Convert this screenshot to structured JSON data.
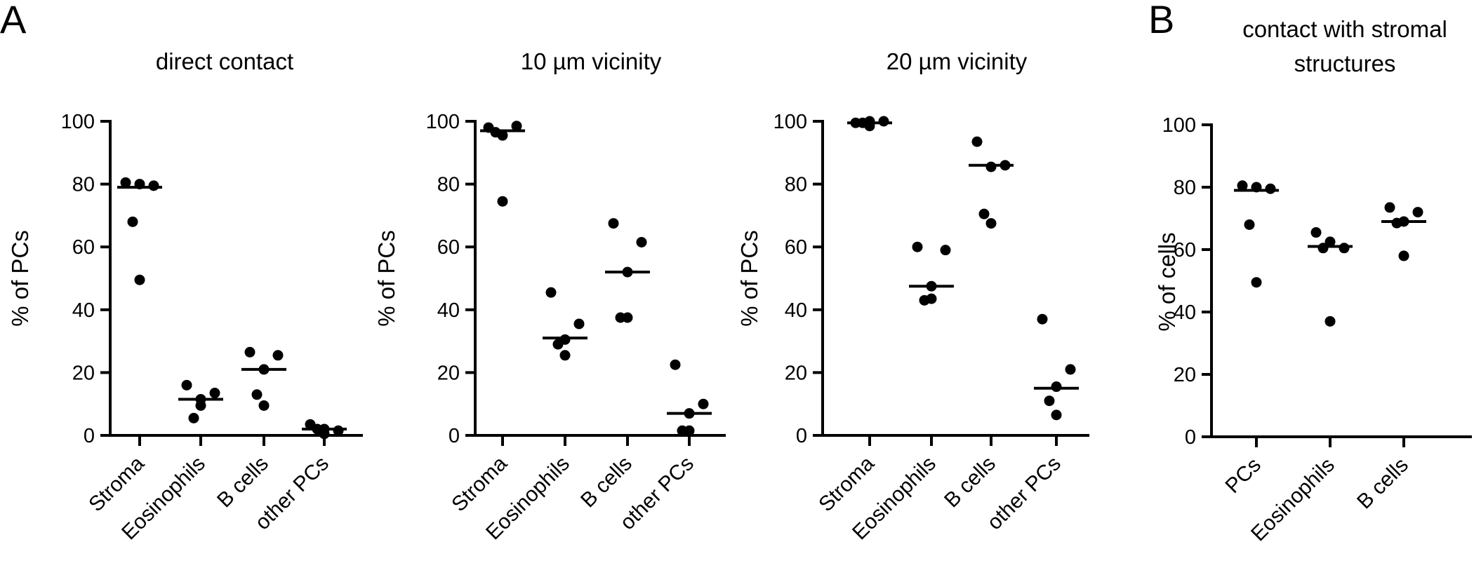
{
  "figure": {
    "panel_letters": [
      "A",
      "B"
    ]
  },
  "chart_data": [
    {
      "type": "scatter",
      "panel": "A",
      "title_lines": [
        "direct contact"
      ],
      "ylabel": "% of PCs",
      "ylim": [
        0,
        100
      ],
      "yticks": [
        0,
        20,
        40,
        60,
        80,
        100
      ],
      "categories": [
        "Stroma",
        "Eosinophils",
        "B cells",
        "other PCs"
      ],
      "points": [
        [
          80.5,
          79.5,
          80,
          68,
          49.5
        ],
        [
          16,
          13.5,
          11.5,
          5.5,
          9.5
        ],
        [
          26.5,
          25.5,
          21,
          13,
          9.5
        ],
        [
          3.5,
          1.5,
          2,
          2,
          0.5
        ]
      ],
      "medians": [
        79,
        11.5,
        21,
        2
      ]
    },
    {
      "type": "scatter",
      "panel": "A",
      "title_lines": [
        "10 µm vicinity"
      ],
      "ylabel": "% of PCs",
      "ylim": [
        0,
        100
      ],
      "yticks": [
        0,
        20,
        40,
        60,
        80,
        100
      ],
      "categories": [
        "Stroma",
        "Eosinophils",
        "B cells",
        "other PCs"
      ],
      "points": [
        [
          98,
          98.5,
          95.5,
          96.5,
          74.5
        ],
        [
          45.5,
          35.5,
          30.5,
          29,
          25.5
        ],
        [
          67.5,
          61.5,
          52,
          37.5,
          37.5
        ],
        [
          22.5,
          10,
          7,
          1.5,
          1.5
        ]
      ],
      "medians": [
        97,
        31,
        52,
        7
      ]
    },
    {
      "type": "scatter",
      "panel": "A",
      "title_lines": [
        "20 µm vicinity"
      ],
      "ylabel": "% of PCs",
      "ylim": [
        0,
        100
      ],
      "yticks": [
        0,
        20,
        40,
        60,
        80,
        100
      ],
      "categories": [
        "Stroma",
        "Eosinophils",
        "B cells",
        "other PCs"
      ],
      "points": [
        [
          99.5,
          100,
          98.5,
          99.5,
          100
        ],
        [
          60,
          59,
          47.5,
          43,
          43.5
        ],
        [
          93.5,
          86,
          85.5,
          70.5,
          67.5
        ],
        [
          37,
          21,
          15.5,
          11,
          6.5
        ]
      ],
      "medians": [
        99.5,
        47.5,
        86,
        15
      ]
    },
    {
      "type": "scatter",
      "panel": "B",
      "title_lines": [
        "contact with stromal",
        "structures"
      ],
      "ylabel": "% of cells",
      "ylim": [
        0,
        100
      ],
      "yticks": [
        0,
        20,
        40,
        60,
        80,
        100
      ],
      "categories": [
        "PCs",
        "Eosinophils",
        "B cells"
      ],
      "points": [
        [
          80.5,
          79.5,
          80,
          68,
          49.5
        ],
        [
          65.5,
          60.5,
          62.5,
          60.5,
          37
        ],
        [
          73.5,
          72,
          69,
          68.5,
          58
        ]
      ],
      "medians": [
        79,
        61,
        69
      ]
    }
  ]
}
